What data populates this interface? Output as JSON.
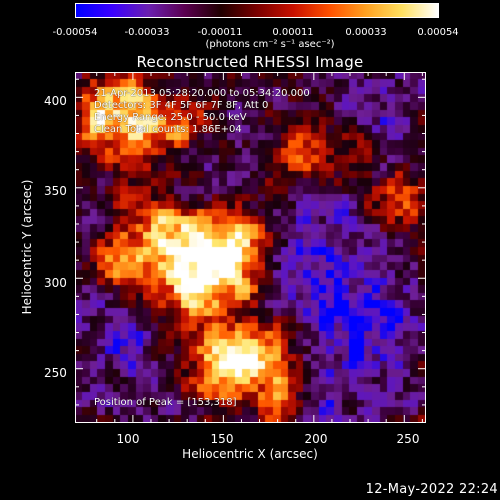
{
  "colorbar": {
    "ticks": [
      "-0.00054",
      "-0.00033",
      "-0.00011",
      "0.00011",
      "0.00033",
      "0.00054"
    ],
    "units": "(photons cm⁻² s⁻¹ asec⁻²)",
    "range": [
      -0.00054,
      0.00054
    ],
    "colors": [
      "#0000ff",
      "#3a00ff",
      "#6a1fb0",
      "#5a0050",
      "#200000",
      "#7a0000",
      "#c81000",
      "#ff5000",
      "#ffa020",
      "#ffe060",
      "#ffffff"
    ]
  },
  "title": "Reconstructed RHESSI Image",
  "annotations": {
    "time": "21-Apr-2013 05:28:20.000 to 05:34:20.000",
    "detectors": "Detectors: 3F 4F 5F 6F 7F 8F, Att 0",
    "energy": "Energy Range: 25.0 - 50.0 keV",
    "clean": "Clean     Total counts: 1.86E+04",
    "peak": "Position of Peak = [153,318]"
  },
  "axes": {
    "xlabel": "Heliocentric X (arcsec)",
    "ylabel": "Heliocentric Y (arcsec)",
    "xticks": [
      "100",
      "150",
      "200",
      "250"
    ],
    "yticks": [
      "400",
      "350",
      "300",
      "250"
    ],
    "xlim": [
      68,
      262
    ],
    "ylim": [
      220,
      414
    ]
  },
  "timestamp": "12-May-2022 22:24"
}
